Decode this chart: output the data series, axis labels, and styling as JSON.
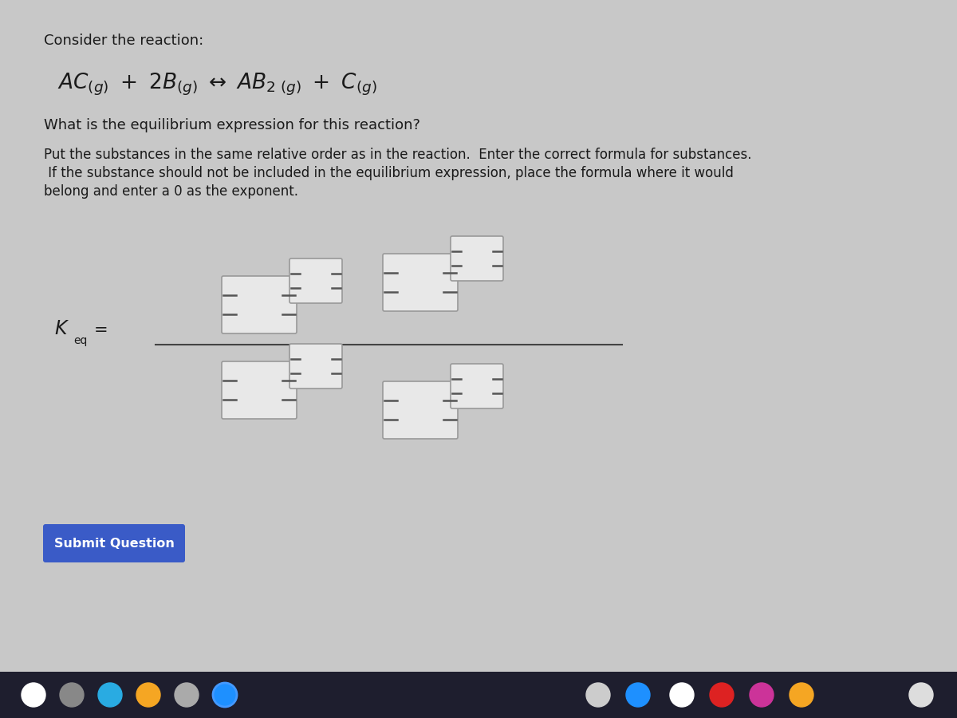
{
  "title": "Consider the reaction:",
  "question1": "What is the equilibrium expression for this reaction?",
  "question2_line1": "Put the substances in the same relative order as in the reaction.  Enter the correct formula for substances.",
  "question2_line2": " If the substance should not be included in the equilibrium expression, place the formula where it would",
  "question2_line3": "belong and enter a 0 as the exponent.",
  "submit_text": "Submit Question",
  "submit_bg": "#3a5bc7",
  "submit_text_color": "#ffffff",
  "background_color": "#c8c8c8",
  "text_color": "#1a1a1a",
  "box_color": "#e8e8e8",
  "box_edge_color": "#888888",
  "line_color": "#444444",
  "fig_width": 12.0,
  "fig_height": 9.0,
  "taskbar_color": "#1e1e2e"
}
